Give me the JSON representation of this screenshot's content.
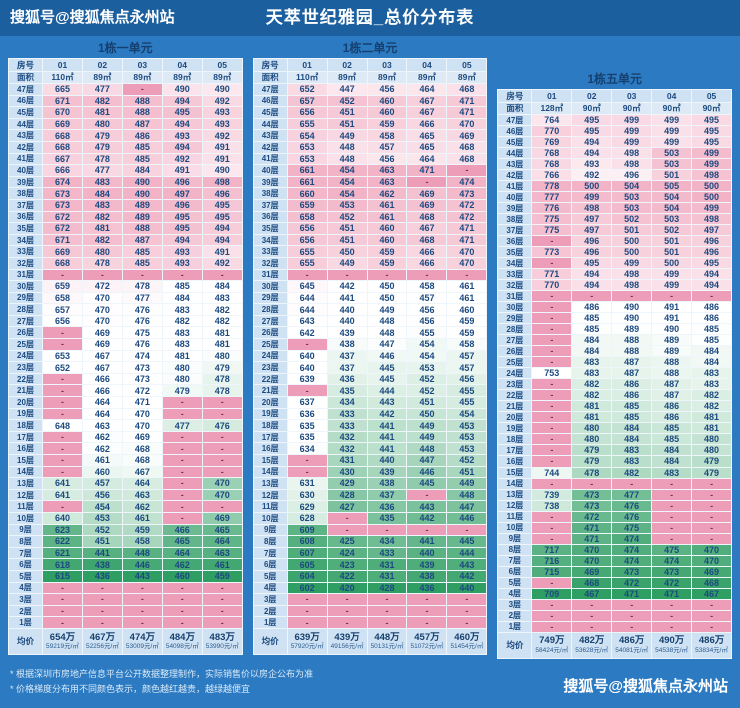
{
  "page": {
    "brand_left": "搜狐号@搜狐焦点永州站",
    "title": "天萃世纪雅园_总价分布表",
    "brand_right": "搜狐号@搜狐焦点永州站",
    "footnotes": [
      "* 根据深圳市房地产信息平台公开数据整理制作，实际销售价以房企公布为准",
      "* 价格梯度分布用不同颜色表示，颜色越红越贵，越绿越便宜"
    ],
    "colors": {
      "background": "#2b7ac2",
      "topbar": "#1b5f9f",
      "header_cell": "#cfe2f3",
      "high_pink": "#f2b3c6",
      "low_green": "#2f9e62",
      "dash_pink": "#ee9db8",
      "cell_text": "#1c4a80"
    }
  },
  "table_header": {
    "room_label": "房号",
    "area_label": "面积",
    "avg_label": "均价"
  },
  "floors": [
    "47层",
    "46层",
    "45层",
    "44层",
    "43层",
    "42层",
    "41层",
    "40层",
    "39层",
    "38层",
    "37层",
    "36层",
    "35层",
    "34层",
    "33层",
    "32层",
    "31层",
    "30层",
    "29层",
    "28层",
    "27层",
    "26层",
    "25层",
    "24层",
    "23层",
    "22层",
    "21层",
    "20层",
    "19层",
    "18层",
    "17层",
    "16层",
    "15层",
    "14层",
    "13层",
    "12层",
    "11层",
    "10层",
    "9层",
    "8层",
    "7层",
    "6层",
    "5层",
    "4层",
    "3层",
    "2层",
    "1层"
  ],
  "chart_data": [
    {
      "type": "heatmap",
      "title": "1栋一单元",
      "columns": [
        "01",
        "02",
        "03",
        "04",
        "05"
      ],
      "areas": [
        "110㎡",
        "89㎡",
        "89㎡",
        "89㎡",
        "89㎡"
      ],
      "values": [
        [
          665,
          477,
          "-",
          490,
          490
        ],
        [
          671,
          482,
          488,
          494,
          492
        ],
        [
          670,
          481,
          488,
          495,
          493
        ],
        [
          669,
          480,
          487,
          494,
          493
        ],
        [
          668,
          479,
          486,
          493,
          492
        ],
        [
          668,
          479,
          485,
          494,
          491
        ],
        [
          667,
          478,
          485,
          492,
          491
        ],
        [
          666,
          477,
          484,
          491,
          490
        ],
        [
          674,
          483,
          490,
          496,
          498
        ],
        [
          673,
          484,
          490,
          497,
          496
        ],
        [
          673,
          483,
          489,
          496,
          495
        ],
        [
          672,
          482,
          489,
          495,
          495
        ],
        [
          672,
          481,
          488,
          495,
          494
        ],
        [
          671,
          482,
          487,
          494,
          494
        ],
        [
          669,
          480,
          485,
          493,
          491
        ],
        [
          668,
          478,
          485,
          493,
          492
        ],
        [
          "-",
          "-",
          "-",
          "-",
          "-"
        ],
        [
          659,
          472,
          478,
          485,
          484
        ],
        [
          658,
          470,
          477,
          484,
          483
        ],
        [
          657,
          470,
          476,
          483,
          482
        ],
        [
          656,
          470,
          476,
          482,
          482
        ],
        [
          "-",
          469,
          475,
          483,
          481
        ],
        [
          "-",
          469,
          476,
          483,
          481
        ],
        [
          653,
          467,
          474,
          481,
          480
        ],
        [
          652,
          467,
          473,
          480,
          479
        ],
        [
          "-",
          466,
          473,
          480,
          478
        ],
        [
          "-",
          466,
          472,
          479,
          478
        ],
        [
          "-",
          464,
          471,
          "-",
          "-"
        ],
        [
          "-",
          464,
          470,
          "-",
          "-"
        ],
        [
          648,
          463,
          470,
          477,
          476
        ],
        [
          "-",
          462,
          469,
          "-",
          "-"
        ],
        [
          "-",
          462,
          468,
          "-",
          "-"
        ],
        [
          "-",
          461,
          468,
          "-",
          "-"
        ],
        [
          "-",
          460,
          467,
          "-",
          "-"
        ],
        [
          641,
          457,
          464,
          "-",
          470
        ],
        [
          641,
          456,
          463,
          "-",
          470
        ],
        [
          "-",
          454,
          462,
          "-",
          "-"
        ],
        [
          640,
          453,
          461,
          "-",
          469
        ],
        [
          623,
          452,
          459,
          466,
          465
        ],
        [
          622,
          451,
          458,
          465,
          464
        ],
        [
          621,
          441,
          448,
          464,
          463
        ],
        [
          618,
          438,
          446,
          462,
          461
        ],
        [
          615,
          436,
          443,
          460,
          459
        ],
        [
          "-",
          "-",
          "-",
          "-",
          "-"
        ],
        [
          "-",
          "-",
          "-",
          "-",
          "-"
        ],
        [
          "-",
          "-",
          "-",
          "-",
          "-"
        ],
        [
          "-",
          "-",
          "-",
          "-",
          "-"
        ]
      ],
      "avg_prices": [
        "654万",
        "467万",
        "474万",
        "484万",
        "483万"
      ],
      "avg_unit_prices": [
        "59219元/㎡",
        "52256元/㎡",
        "53009元/㎡",
        "54098元/㎡",
        "53990元/㎡"
      ]
    },
    {
      "type": "heatmap",
      "title": "1栋二单元",
      "columns": [
        "01",
        "02",
        "03",
        "04",
        "05"
      ],
      "areas": [
        "110㎡",
        "89㎡",
        "89㎡",
        "89㎡",
        "89㎡"
      ],
      "values": [
        [
          652,
          447,
          456,
          464,
          468
        ],
        [
          657,
          452,
          460,
          467,
          471
        ],
        [
          656,
          451,
          460,
          467,
          471
        ],
        [
          655,
          451,
          459,
          466,
          470
        ],
        [
          654,
          449,
          458,
          465,
          469
        ],
        [
          653,
          448,
          457,
          465,
          468
        ],
        [
          653,
          448,
          456,
          464,
          468
        ],
        [
          661,
          454,
          463,
          471,
          "-"
        ],
        [
          661,
          454,
          463,
          "-",
          474
        ],
        [
          660,
          454,
          462,
          469,
          473
        ],
        [
          659,
          453,
          461,
          469,
          472
        ],
        [
          658,
          452,
          461,
          468,
          472
        ],
        [
          656,
          451,
          460,
          467,
          471
        ],
        [
          656,
          451,
          460,
          468,
          471
        ],
        [
          655,
          450,
          459,
          466,
          470
        ],
        [
          655,
          449,
          459,
          466,
          470
        ],
        [
          "-",
          "-",
          "-",
          "-",
          "-"
        ],
        [
          645,
          442,
          450,
          458,
          461
        ],
        [
          644,
          441,
          450,
          457,
          461
        ],
        [
          644,
          440,
          449,
          456,
          460
        ],
        [
          643,
          440,
          448,
          456,
          459
        ],
        [
          642,
          439,
          448,
          455,
          459
        ],
        [
          "-",
          438,
          447,
          454,
          458
        ],
        [
          640,
          437,
          446,
          454,
          457
        ],
        [
          640,
          437,
          445,
          453,
          457
        ],
        [
          639,
          436,
          445,
          452,
          456
        ],
        [
          "-",
          435,
          444,
          452,
          455
        ],
        [
          637,
          434,
          443,
          451,
          455
        ],
        [
          636,
          433,
          442,
          450,
          454
        ],
        [
          635,
          433,
          441,
          449,
          453
        ],
        [
          635,
          432,
          441,
          449,
          453
        ],
        [
          634,
          432,
          441,
          448,
          453
        ],
        [
          "-",
          431,
          440,
          447,
          452
        ],
        [
          "-",
          430,
          439,
          446,
          451
        ],
        [
          631,
          429,
          438,
          445,
          449
        ],
        [
          630,
          428,
          437,
          "-",
          448
        ],
        [
          629,
          427,
          436,
          443,
          447
        ],
        [
          628,
          "-",
          435,
          442,
          446
        ],
        [
          609,
          "-",
          "-",
          "-",
          "-"
        ],
        [
          608,
          425,
          434,
          441,
          445
        ],
        [
          607,
          424,
          433,
          440,
          444
        ],
        [
          605,
          423,
          431,
          439,
          443
        ],
        [
          604,
          422,
          431,
          438,
          442
        ],
        [
          602,
          420,
          428,
          436,
          440
        ],
        [
          "-",
          "-",
          "-",
          "-",
          "-"
        ],
        [
          "-",
          "-",
          "-",
          "-",
          "-"
        ],
        [
          "-",
          "-",
          "-",
          "-",
          "-"
        ]
      ],
      "avg_prices": [
        "639万",
        "439万",
        "448万",
        "457万",
        "460万"
      ],
      "avg_unit_prices": [
        "57920元/㎡",
        "49156元/㎡",
        "50131元/㎡",
        "51072元/㎡",
        "51454元/㎡"
      ]
    },
    {
      "type": "heatmap",
      "title": "1栋五单元",
      "columns": [
        "01",
        "02",
        "03",
        "04",
        "05"
      ],
      "areas": [
        "128㎡",
        "90㎡",
        "90㎡",
        "90㎡",
        "90㎡"
      ],
      "values": [
        [
          764,
          495,
          499,
          499,
          495
        ],
        [
          770,
          495,
          499,
          499,
          495
        ],
        [
          769,
          494,
          499,
          499,
          495
        ],
        [
          768,
          494,
          498,
          503,
          499
        ],
        [
          768,
          493,
          498,
          503,
          499
        ],
        [
          766,
          492,
          496,
          501,
          498
        ],
        [
          778,
          500,
          504,
          505,
          500
        ],
        [
          777,
          499,
          503,
          504,
          500
        ],
        [
          776,
          498,
          503,
          504,
          499
        ],
        [
          775,
          497,
          502,
          503,
          498
        ],
        [
          775,
          497,
          501,
          502,
          497
        ],
        [
          "-",
          496,
          500,
          501,
          496
        ],
        [
          773,
          496,
          500,
          501,
          496
        ],
        [
          "-",
          495,
          499,
          500,
          495
        ],
        [
          771,
          494,
          498,
          499,
          494
        ],
        [
          770,
          494,
          498,
          499,
          494
        ],
        [
          "-",
          "-",
          "-",
          "-",
          "-"
        ],
        [
          "-",
          486,
          490,
          491,
          486
        ],
        [
          "-",
          485,
          490,
          491,
          486
        ],
        [
          "-",
          485,
          489,
          490,
          485
        ],
        [
          "-",
          484,
          488,
          489,
          485
        ],
        [
          "-",
          484,
          488,
          489,
          484
        ],
        [
          "-",
          483,
          487,
          488,
          484
        ],
        [
          753,
          483,
          487,
          488,
          483
        ],
        [
          "-",
          482,
          486,
          487,
          483
        ],
        [
          "-",
          482,
          486,
          487,
          482
        ],
        [
          "-",
          481,
          485,
          486,
          482
        ],
        [
          "-",
          481,
          485,
          486,
          481
        ],
        [
          "-",
          480,
          484,
          485,
          481
        ],
        [
          "-",
          480,
          484,
          485,
          480
        ],
        [
          "-",
          479,
          483,
          484,
          480
        ],
        [
          "-",
          479,
          483,
          484,
          479
        ],
        [
          744,
          478,
          482,
          483,
          479
        ],
        [
          "-",
          "-",
          "-",
          "-",
          "-"
        ],
        [
          739,
          473,
          477,
          "-",
          "-"
        ],
        [
          738,
          473,
          476,
          "-",
          "-"
        ],
        [
          "-",
          472,
          476,
          "-",
          "-"
        ],
        [
          "-",
          471,
          475,
          "-",
          "-"
        ],
        [
          "-",
          471,
          474,
          "-",
          "-"
        ],
        [
          717,
          470,
          474,
          475,
          470
        ],
        [
          716,
          470,
          474,
          474,
          470
        ],
        [
          715,
          469,
          473,
          473,
          469
        ],
        [
          "-",
          468,
          472,
          472,
          468
        ],
        [
          709,
          467,
          471,
          471,
          467
        ],
        [
          "-",
          "-",
          "-",
          "-",
          "-"
        ],
        [
          "-",
          "-",
          "-",
          "-",
          "-"
        ],
        [
          "-",
          "-",
          "-",
          "-",
          "-"
        ]
      ],
      "avg_prices": [
        "749万",
        "482万",
        "486万",
        "490万",
        "486万"
      ],
      "avg_unit_prices": [
        "58424元/㎡",
        "53628元/㎡",
        "54081元/㎡",
        "54538元/㎡",
        "53834元/㎡"
      ]
    }
  ]
}
